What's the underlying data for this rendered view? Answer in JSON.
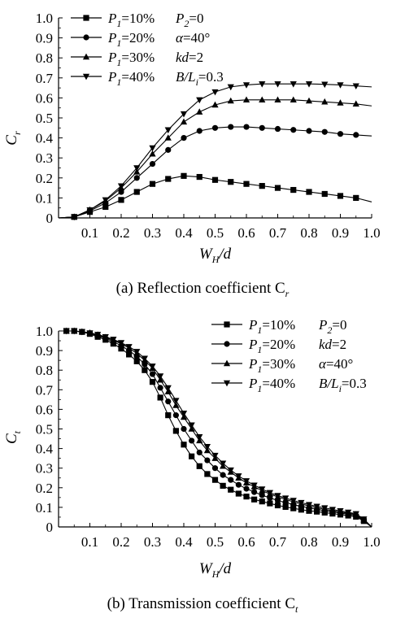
{
  "chart_data": [
    {
      "type": "line",
      "caption": "(a) Reflection coefficient C",
      "caption_sub": "r",
      "xlabel": "W",
      "xlabel_sub": "H",
      "xlabel_suffix": "/d",
      "ylabel": "C",
      "ylabel_sub": "r",
      "xlim": [
        0,
        1.0
      ],
      "ylim": [
        0,
        1.0
      ],
      "x_ticks": [
        0.1,
        0.2,
        0.3,
        0.4,
        0.5,
        0.6,
        0.7,
        0.8,
        0.9,
        1.0
      ],
      "x_tick_labels": [
        "0.1",
        "0.2",
        "0.3",
        "0.4",
        "0.5",
        "0.6",
        "0.7",
        "0.8",
        "0.9",
        "1.0"
      ],
      "y_ticks": [
        0,
        0.1,
        0.2,
        0.3,
        0.4,
        0.5,
        0.6,
        0.7,
        0.8,
        0.9,
        1.0
      ],
      "y_tick_labels": [
        "0",
        "0.1",
        "0.2",
        "0.3",
        "0.4",
        "0.5",
        "0.6",
        "0.7",
        "0.8",
        "0.9",
        "1.0"
      ],
      "grid": false,
      "legend_position": "top-left",
      "series": [
        {
          "name": "P1=10%",
          "marker": "square",
          "x": [
            0.0,
            0.05,
            0.1,
            0.15,
            0.2,
            0.25,
            0.3,
            0.35,
            0.4,
            0.45,
            0.5,
            0.55,
            0.6,
            0.65,
            0.7,
            0.75,
            0.8,
            0.85,
            0.9,
            0.95,
            1.0
          ],
          "y": [
            0.0,
            0.005,
            0.03,
            0.055,
            0.09,
            0.13,
            0.17,
            0.195,
            0.21,
            0.205,
            0.19,
            0.18,
            0.17,
            0.16,
            0.15,
            0.14,
            0.13,
            0.12,
            0.11,
            0.1,
            0.08
          ]
        },
        {
          "name": "P1=20%",
          "marker": "circle",
          "x": [
            0.0,
            0.05,
            0.1,
            0.15,
            0.2,
            0.25,
            0.3,
            0.35,
            0.4,
            0.45,
            0.5,
            0.55,
            0.6,
            0.65,
            0.7,
            0.75,
            0.8,
            0.85,
            0.9,
            0.95,
            1.0
          ],
          "y": [
            0.0,
            0.005,
            0.035,
            0.075,
            0.13,
            0.2,
            0.27,
            0.34,
            0.4,
            0.435,
            0.45,
            0.455,
            0.455,
            0.45,
            0.445,
            0.44,
            0.435,
            0.43,
            0.42,
            0.415,
            0.41
          ]
        },
        {
          "name": "P1=30%",
          "marker": "triangle-up",
          "x": [
            0.0,
            0.05,
            0.1,
            0.15,
            0.2,
            0.25,
            0.3,
            0.35,
            0.4,
            0.45,
            0.5,
            0.55,
            0.6,
            0.65,
            0.7,
            0.75,
            0.8,
            0.85,
            0.9,
            0.95,
            1.0
          ],
          "y": [
            0.0,
            0.005,
            0.04,
            0.085,
            0.15,
            0.23,
            0.32,
            0.4,
            0.48,
            0.53,
            0.565,
            0.585,
            0.59,
            0.59,
            0.59,
            0.59,
            0.585,
            0.58,
            0.575,
            0.57,
            0.56
          ]
        },
        {
          "name": "P1=40%",
          "marker": "triangle-down",
          "x": [
            0.0,
            0.05,
            0.1,
            0.15,
            0.2,
            0.25,
            0.3,
            0.35,
            0.4,
            0.45,
            0.5,
            0.55,
            0.6,
            0.65,
            0.7,
            0.75,
            0.8,
            0.85,
            0.9,
            0.95,
            1.0
          ],
          "y": [
            0.0,
            0.005,
            0.04,
            0.09,
            0.16,
            0.25,
            0.35,
            0.44,
            0.52,
            0.59,
            0.63,
            0.655,
            0.665,
            0.67,
            0.67,
            0.67,
            0.67,
            0.668,
            0.665,
            0.66,
            0.655
          ]
        }
      ],
      "legend_params": [
        {
          "label": "P",
          "sub": "2",
          "rest": "=0"
        },
        {
          "label": "α",
          "sub": "",
          "rest": "=40°"
        },
        {
          "label": "kd",
          "sub": "",
          "rest": "=2"
        },
        {
          "label": "B/L",
          "sub": "i",
          "rest": "=0.3"
        }
      ]
    },
    {
      "type": "line",
      "caption": "(b) Transmission coefficient C",
      "caption_sub": "t",
      "xlabel": "W",
      "xlabel_sub": "H",
      "xlabel_suffix": "/d",
      "ylabel": "C",
      "ylabel_sub": "t",
      "xlim": [
        0,
        1.0
      ],
      "ylim": [
        0,
        1.0
      ],
      "x_ticks": [
        0.1,
        0.2,
        0.3,
        0.4,
        0.5,
        0.6,
        0.7,
        0.8,
        0.9,
        1.0
      ],
      "x_tick_labels": [
        "0.1",
        "0.2",
        "0.3",
        "0.4",
        "0.5",
        "0.6",
        "0.7",
        "0.8",
        "0.9",
        "1.0"
      ],
      "y_ticks": [
        0,
        0.1,
        0.2,
        0.3,
        0.4,
        0.5,
        0.6,
        0.7,
        0.8,
        0.9,
        1.0
      ],
      "y_tick_labels": [
        "0",
        "0.1",
        "0.2",
        "0.3",
        "0.4",
        "0.5",
        "0.6",
        "0.7",
        "0.8",
        "0.9",
        "1.0"
      ],
      "grid": false,
      "legend_position": "top-right",
      "series": [
        {
          "name": "P1=10%",
          "marker": "square",
          "x": [
            0.0,
            0.025,
            0.05,
            0.075,
            0.1,
            0.125,
            0.15,
            0.175,
            0.2,
            0.225,
            0.25,
            0.275,
            0.3,
            0.325,
            0.35,
            0.375,
            0.4,
            0.425,
            0.45,
            0.475,
            0.5,
            0.525,
            0.55,
            0.575,
            0.6,
            0.625,
            0.65,
            0.675,
            0.7,
            0.725,
            0.75,
            0.775,
            0.8,
            0.825,
            0.85,
            0.875,
            0.9,
            0.925,
            0.95,
            0.975,
            1.0
          ],
          "y": [
            1.0,
            1.0,
            1.0,
            0.995,
            0.985,
            0.97,
            0.955,
            0.935,
            0.91,
            0.88,
            0.845,
            0.8,
            0.74,
            0.66,
            0.57,
            0.49,
            0.42,
            0.36,
            0.31,
            0.27,
            0.24,
            0.21,
            0.19,
            0.17,
            0.155,
            0.14,
            0.13,
            0.12,
            0.11,
            0.102,
            0.095,
            0.088,
            0.082,
            0.078,
            0.073,
            0.068,
            0.063,
            0.058,
            0.052,
            0.03,
            0.0
          ]
        },
        {
          "name": "P1=20%",
          "marker": "circle",
          "x": [
            0.0,
            0.025,
            0.05,
            0.075,
            0.1,
            0.125,
            0.15,
            0.175,
            0.2,
            0.225,
            0.25,
            0.275,
            0.3,
            0.325,
            0.35,
            0.375,
            0.4,
            0.425,
            0.45,
            0.475,
            0.5,
            0.525,
            0.55,
            0.575,
            0.6,
            0.625,
            0.65,
            0.675,
            0.7,
            0.725,
            0.75,
            0.775,
            0.8,
            0.825,
            0.85,
            0.875,
            0.9,
            0.925,
            0.95,
            0.975,
            1.0
          ],
          "y": [
            1.0,
            1.0,
            1.0,
            0.995,
            0.988,
            0.975,
            0.962,
            0.945,
            0.925,
            0.9,
            0.87,
            0.83,
            0.78,
            0.71,
            0.64,
            0.57,
            0.5,
            0.44,
            0.38,
            0.34,
            0.3,
            0.265,
            0.24,
            0.215,
            0.195,
            0.178,
            0.162,
            0.148,
            0.135,
            0.124,
            0.114,
            0.105,
            0.097,
            0.09,
            0.083,
            0.077,
            0.071,
            0.065,
            0.058,
            0.033,
            0.0
          ]
        },
        {
          "name": "P1=30%",
          "marker": "triangle-up",
          "x": [
            0.0,
            0.025,
            0.05,
            0.075,
            0.1,
            0.125,
            0.15,
            0.175,
            0.2,
            0.225,
            0.25,
            0.275,
            0.3,
            0.325,
            0.35,
            0.375,
            0.4,
            0.425,
            0.45,
            0.475,
            0.5,
            0.525,
            0.55,
            0.575,
            0.6,
            0.625,
            0.65,
            0.675,
            0.7,
            0.725,
            0.75,
            0.775,
            0.8,
            0.825,
            0.85,
            0.875,
            0.9,
            0.925,
            0.95,
            0.975,
            1.0
          ],
          "y": [
            1.0,
            1.0,
            1.0,
            0.996,
            0.99,
            0.98,
            0.967,
            0.952,
            0.935,
            0.913,
            0.885,
            0.85,
            0.81,
            0.75,
            0.69,
            0.62,
            0.56,
            0.5,
            0.44,
            0.39,
            0.35,
            0.31,
            0.28,
            0.25,
            0.225,
            0.205,
            0.185,
            0.168,
            0.153,
            0.14,
            0.128,
            0.117,
            0.107,
            0.098,
            0.09,
            0.083,
            0.076,
            0.07,
            0.063,
            0.036,
            0.0
          ]
        },
        {
          "name": "P1=40%",
          "marker": "triangle-down",
          "x": [
            0.0,
            0.025,
            0.05,
            0.075,
            0.1,
            0.125,
            0.15,
            0.175,
            0.2,
            0.225,
            0.25,
            0.275,
            0.3,
            0.325,
            0.35,
            0.375,
            0.4,
            0.425,
            0.45,
            0.475,
            0.5,
            0.525,
            0.55,
            0.575,
            0.6,
            0.625,
            0.65,
            0.675,
            0.7,
            0.725,
            0.75,
            0.775,
            0.8,
            0.825,
            0.85,
            0.875,
            0.9,
            0.925,
            0.95,
            0.975,
            1.0
          ],
          "y": [
            1.0,
            1.0,
            1.0,
            0.996,
            0.99,
            0.982,
            0.97,
            0.957,
            0.94,
            0.92,
            0.895,
            0.86,
            0.82,
            0.77,
            0.71,
            0.645,
            0.58,
            0.52,
            0.46,
            0.41,
            0.365,
            0.325,
            0.29,
            0.26,
            0.235,
            0.213,
            0.193,
            0.175,
            0.16,
            0.147,
            0.135,
            0.124,
            0.114,
            0.105,
            0.097,
            0.089,
            0.082,
            0.075,
            0.067,
            0.04,
            0.0
          ]
        }
      ],
      "legend_params": [
        {
          "label": "P",
          "sub": "2",
          "rest": "=0"
        },
        {
          "label": "kd",
          "sub": "",
          "rest": "=2"
        },
        {
          "label": "α",
          "sub": "",
          "rest": "=40°"
        },
        {
          "label": "B/L",
          "sub": "i",
          "rest": "=0.3"
        }
      ]
    }
  ]
}
